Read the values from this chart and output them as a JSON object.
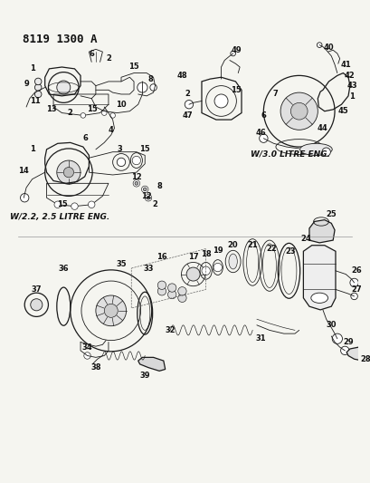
{
  "title": "8119 1300 A",
  "bg_color": "#f5f5f0",
  "line_color": "#1a1a1a",
  "label_color": "#111111",
  "subtitle1": "W/2.2, 2.5 LITRE ENG.",
  "subtitle2": "W/3.0 LITRE ENG.",
  "fig_w": 4.1,
  "fig_h": 5.33,
  "dpi": 100
}
